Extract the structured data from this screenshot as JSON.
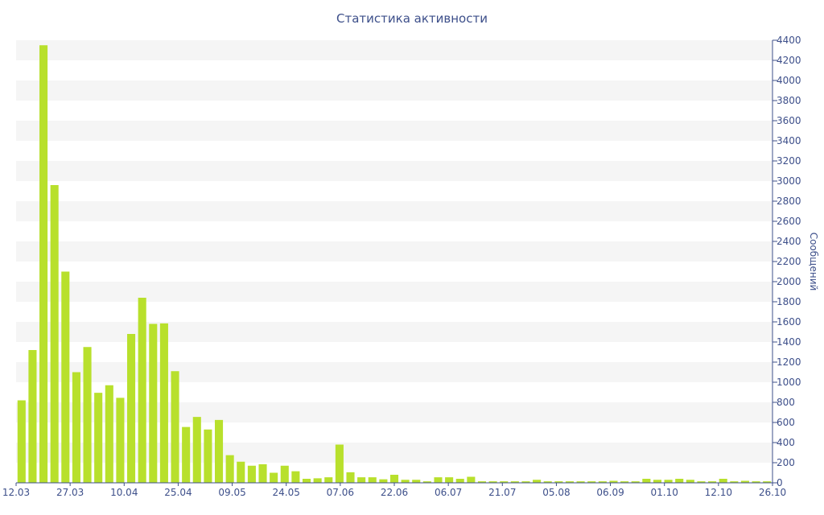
{
  "chart_data": {
    "type": "bar",
    "title": "Статистика активности",
    "ylabel": "Сообщений",
    "ylim": [
      0,
      4400
    ],
    "yticks": [
      0,
      200,
      400,
      600,
      800,
      1000,
      1200,
      1400,
      1600,
      1800,
      2000,
      2200,
      2400,
      2600,
      2800,
      3000,
      3200,
      3400,
      3600,
      3800,
      4000,
      4200,
      4400
    ],
    "xtick_labels": [
      "12.03",
      "27.03",
      "10.04",
      "25.04",
      "09.05",
      "24.05",
      "07.06",
      "22.06",
      "06.07",
      "21.07",
      "05.08",
      "06.09",
      "01.10",
      "12.10",
      "26.10"
    ],
    "values": [
      820,
      1320,
      4350,
      2960,
      2100,
      1100,
      1350,
      895,
      970,
      845,
      1480,
      1840,
      1580,
      1585,
      1110,
      555,
      655,
      530,
      625,
      275,
      210,
      170,
      185,
      100,
      170,
      115,
      40,
      45,
      55,
      380,
      105,
      55,
      55,
      35,
      80,
      30,
      30,
      15,
      55,
      55,
      40,
      60,
      15,
      15,
      15,
      15,
      15,
      30,
      15,
      15,
      15,
      15,
      15,
      15,
      20,
      15,
      15,
      40,
      30,
      30,
      40,
      30,
      15,
      15,
      40,
      15,
      20,
      15,
      15
    ],
    "bar_color": "#b8e02c",
    "band_color": "#f5f5f5",
    "axis_color": "#3d4f8a",
    "grid": true,
    "legend": "none"
  }
}
